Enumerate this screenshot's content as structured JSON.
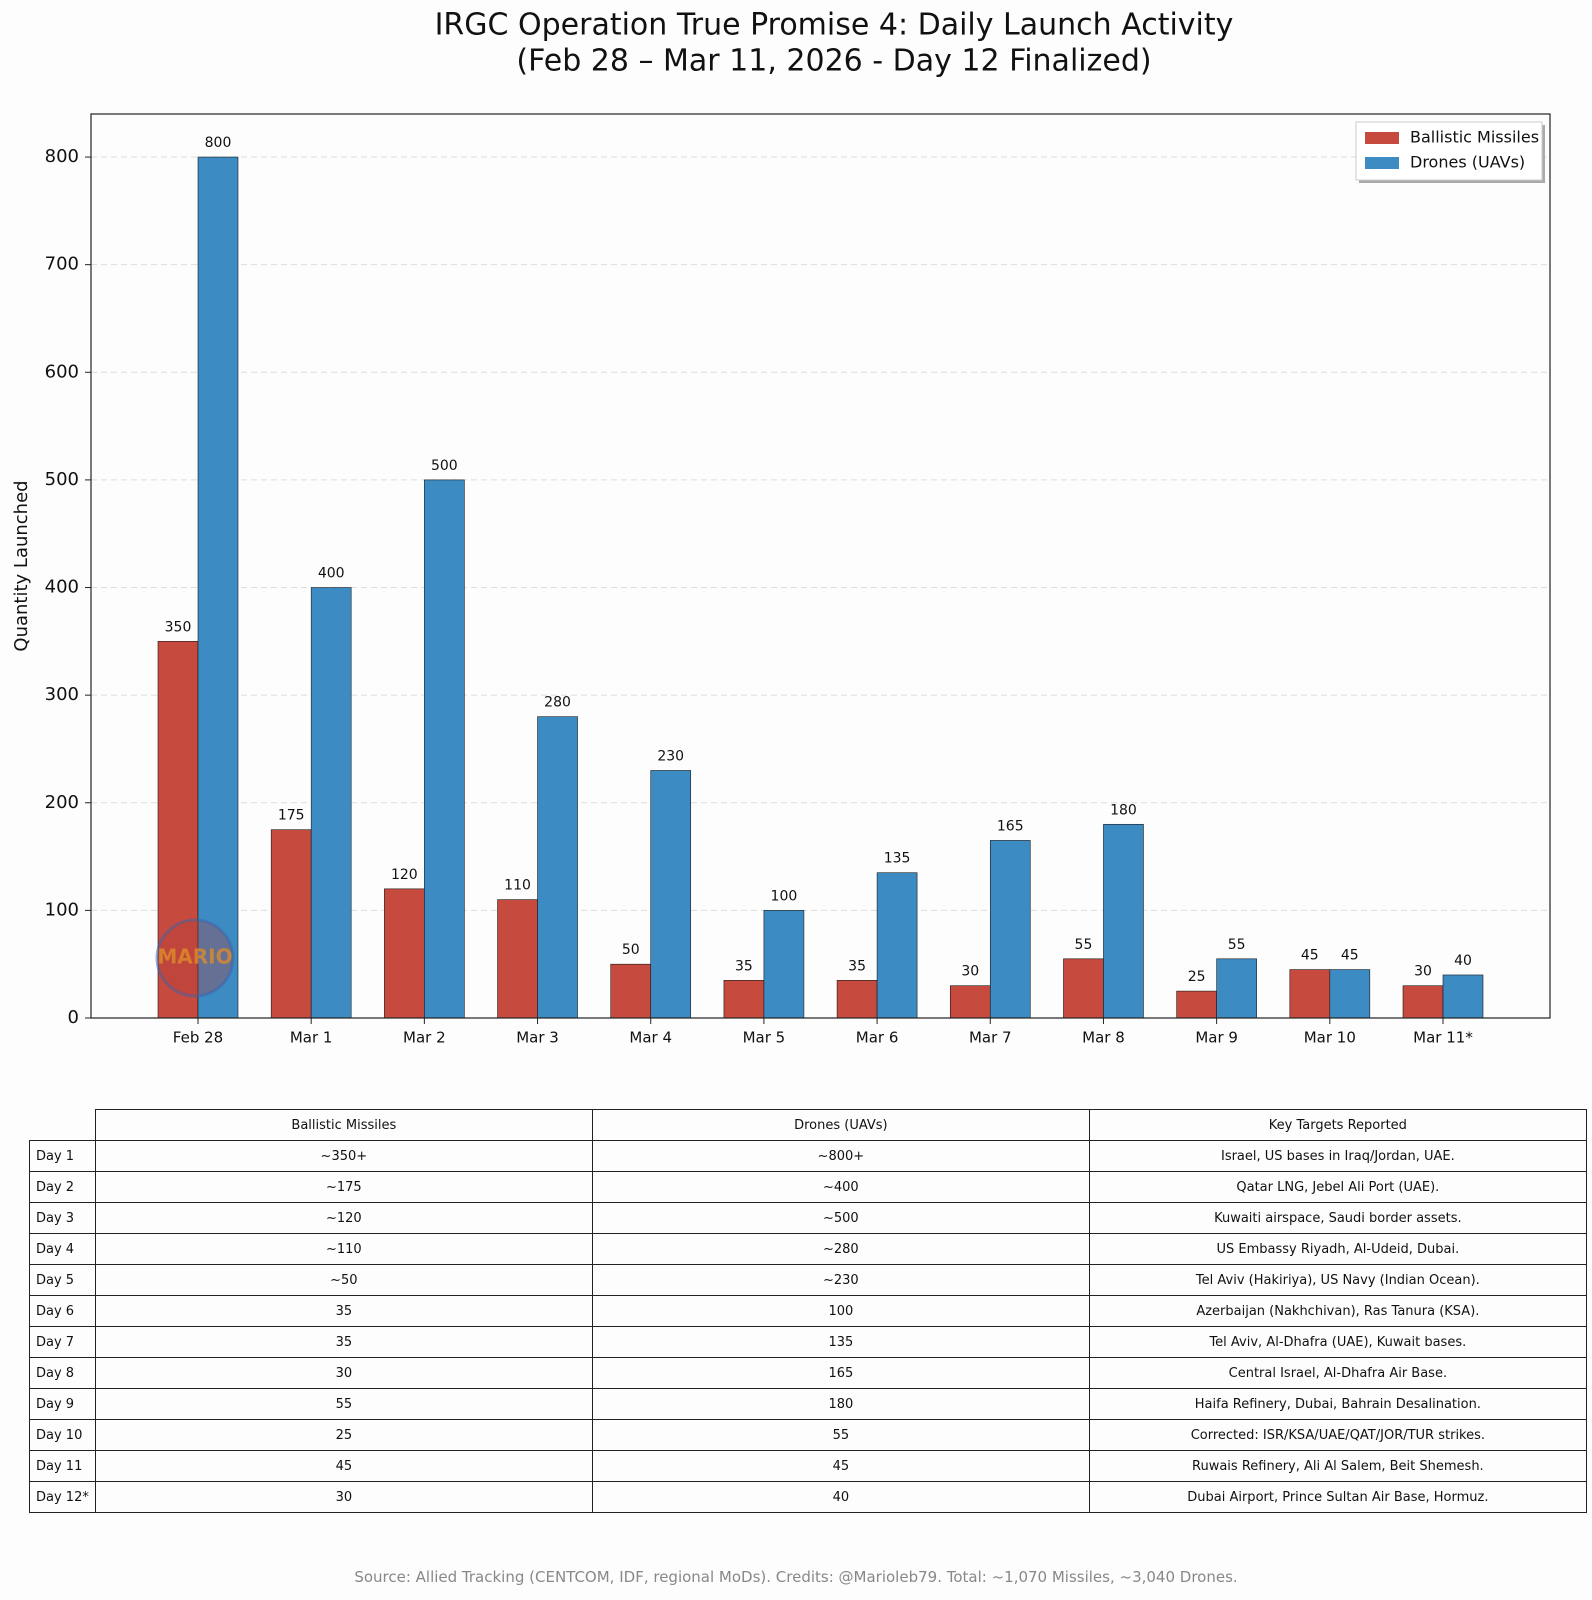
{
  "chart_data": {
    "type": "bar",
    "title": "IRGC Operation True Promise 4: Daily Launch Activity",
    "subtitle": "(Feb 28 – Mar 11, 2026 - Day 12 Finalized)",
    "y_label": "Quantity Launched",
    "watermark": "MARIO",
    "categories": [
      "Feb 28",
      "Mar 1",
      "Mar 2",
      "Mar 3",
      "Mar 4",
      "Mar 5",
      "Mar 6",
      "Mar 7",
      "Mar 8",
      "Mar 9",
      "Mar 10",
      "Mar 11*"
    ],
    "series": [
      {
        "name": "Ballistic Missiles",
        "color": "#c64a3d",
        "values": [
          350,
          175,
          120,
          110,
          50,
          35,
          35,
          30,
          55,
          25,
          45,
          30
        ]
      },
      {
        "name": "Drones (UAVs)",
        "color": "#3d8bc3",
        "values": [
          800,
          400,
          500,
          280,
          230,
          100,
          135,
          165,
          180,
          55,
          45,
          40
        ]
      }
    ],
    "ylim": [
      0,
      840
    ],
    "yticks": [
      0,
      100,
      200,
      300,
      400,
      500,
      600,
      700,
      800
    ],
    "grid": true,
    "legend": "upper right"
  },
  "table": {
    "columns": [
      "Ballistic Missiles",
      "Drones (UAVs)",
      "Key Targets Reported"
    ],
    "rows": [
      [
        "Day 1",
        "~350+",
        "~800+",
        "Israel, US bases in Iraq/Jordan, UAE."
      ],
      [
        "Day 2",
        "~175",
        "~400",
        "Qatar LNG, Jebel Ali Port (UAE)."
      ],
      [
        "Day 3",
        "~120",
        "~500",
        "Kuwaiti airspace, Saudi border assets."
      ],
      [
        "Day 4",
        "~110",
        "~280",
        "US Embassy Riyadh, Al-Udeid, Dubai."
      ],
      [
        "Day 5",
        "~50",
        "~230",
        "Tel Aviv (Hakiriya), US Navy (Indian Ocean)."
      ],
      [
        "Day 6",
        "35",
        "100",
        "Azerbaijan (Nakhchivan), Ras Tanura (KSA)."
      ],
      [
        "Day 7",
        "35",
        "135",
        "Tel Aviv, Al-Dhafra (UAE), Kuwait bases."
      ],
      [
        "Day 8",
        "30",
        "165",
        "Central Israel, Al-Dhafra Air Base."
      ],
      [
        "Day 9",
        "55",
        "180",
        "Haifa Refinery, Dubai, Bahrain Desalination."
      ],
      [
        "Day 10",
        "25",
        "55",
        "Corrected: ISR/KSA/UAE/QAT/JOR/TUR strikes."
      ],
      [
        "Day 11",
        "45",
        "45",
        "Ruwais Refinery, Ali Al Salem, Beit Shemesh."
      ],
      [
        "Day 12*",
        "30",
        "40",
        "Dubai Airport, Prince Sultan Air Base, Hormuz."
      ]
    ]
  },
  "source": "Source: Allied Tracking (CENTCOM, IDF, regional MoDs). Credits: @Marioleb79. Total: ~1,070 Missiles, ~3,040 Drones."
}
